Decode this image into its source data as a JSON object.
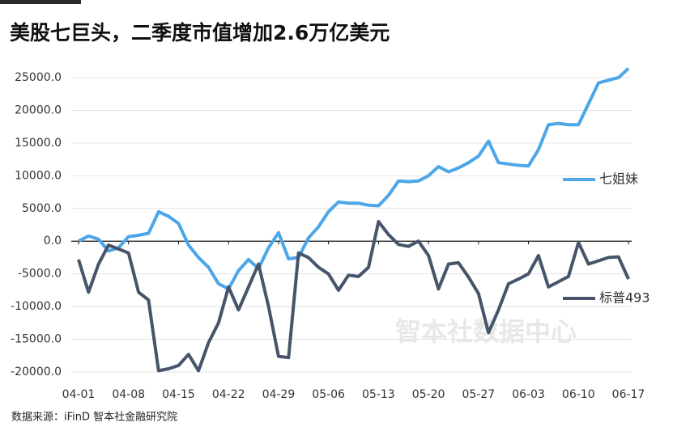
{
  "chart_data": {
    "type": "line",
    "title": "美股七巨头，二季度市值增加2.6万亿美元",
    "source": "数据来源：iFinD 智本社金融研究院",
    "watermark": "智本社数据中心",
    "categories": [
      "04-01",
      null,
      null,
      null,
      null,
      "04-08",
      null,
      null,
      null,
      null,
      "04-15",
      null,
      null,
      null,
      null,
      "04-22",
      null,
      null,
      null,
      null,
      "04-29",
      null,
      null,
      null,
      null,
      "05-06",
      null,
      null,
      null,
      null,
      "05-13",
      null,
      null,
      null,
      null,
      "05-20",
      null,
      null,
      null,
      null,
      "05-27",
      null,
      null,
      null,
      null,
      "06-03",
      null,
      null,
      null,
      null,
      "06-10",
      null,
      null,
      null,
      null,
      "06-17"
    ],
    "series": [
      {
        "name": "七姐妹",
        "color": "#4da6e8",
        "values": [
          0,
          800,
          300,
          -1500,
          -1000,
          700,
          900,
          1200,
          4500,
          3800,
          2700,
          -600,
          -2500,
          -4000,
          -6500,
          -7300,
          -4500,
          -2800,
          -4200,
          -1000,
          1300,
          -2700,
          -2500,
          500,
          2200,
          4500,
          6000,
          5800,
          5800,
          5500,
          5400,
          7000,
          9200,
          9100,
          9200,
          10000,
          11400,
          10600,
          11200,
          12000,
          13000,
          15300,
          12000,
          11800,
          11600,
          11500,
          14000,
          17800,
          18000,
          17800,
          17800,
          21000,
          24200,
          24600,
          25000,
          26400
        ]
      },
      {
        "name": "标普493",
        "color": "#46556a",
        "values": [
          -2800,
          -7800,
          -3500,
          -600,
          -1200,
          -1800,
          -7800,
          -9000,
          -19800,
          -19500,
          -19000,
          -17300,
          -19800,
          -15500,
          -12500,
          -7000,
          -10500,
          -7000,
          -3500,
          -10000,
          -17600,
          -17800,
          -1800,
          -2500,
          -4000,
          -5000,
          -7500,
          -5200,
          -5400,
          -4000,
          3000,
          1000,
          -500,
          -800,
          0,
          -2200,
          -7300,
          -3500,
          -3300,
          -5500,
          -8000,
          -14000,
          -10500,
          -6500,
          -5800,
          -5000,
          -2200,
          -7000,
          -6200,
          -5400,
          -200,
          -3500,
          -3000,
          -2500,
          -2400,
          -5800
        ]
      }
    ],
    "ylim": [
      -20000,
      25000
    ],
    "yticks": [
      {
        "value": -20000,
        "label": "-20000.0"
      },
      {
        "value": -15000,
        "label": "-15000.0"
      },
      {
        "value": -10000,
        "label": "-10000.0"
      },
      {
        "value": -5000,
        "label": "-5000.0"
      },
      {
        "value": 0,
        "label": "0.0"
      },
      {
        "value": 5000,
        "label": "5000.0"
      },
      {
        "value": 10000,
        "label": "10000.0"
      },
      {
        "value": 15000,
        "label": "15000.0"
      },
      {
        "value": 20000,
        "label": "20000.0"
      },
      {
        "value": 25000,
        "label": "25000.0"
      }
    ],
    "grid": true,
    "legend": "right"
  }
}
